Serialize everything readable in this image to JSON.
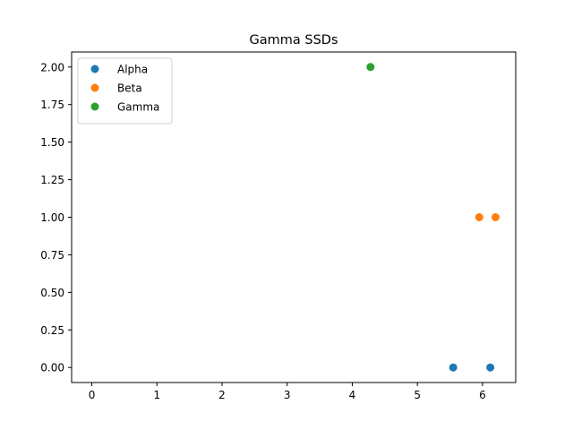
{
  "chart_data": {
    "type": "scatter",
    "title": "Gamma SSDs",
    "xlabel": "",
    "ylabel": "",
    "xlim": [
      -0.31,
      6.51
    ],
    "ylim": [
      -0.1,
      2.1
    ],
    "x_ticks": [
      0,
      1,
      2,
      3,
      4,
      5,
      6
    ],
    "y_ticks": [
      0.0,
      0.25,
      0.5,
      0.75,
      1.0,
      1.25,
      1.5,
      1.75,
      2.0
    ],
    "grid": false,
    "legend_position": "top-left",
    "series": [
      {
        "name": "Alpha",
        "color": "#1f77b4",
        "points": [
          {
            "x": 5.55,
            "y": 0.0
          },
          {
            "x": 6.12,
            "y": 0.0
          }
        ]
      },
      {
        "name": "Beta",
        "color": "#ff7f0e",
        "points": [
          {
            "x": 5.95,
            "y": 1.0
          },
          {
            "x": 6.2,
            "y": 1.0
          }
        ]
      },
      {
        "name": "Gamma",
        "color": "#2ca02c",
        "points": [
          {
            "x": 4.28,
            "y": 2.0
          }
        ]
      }
    ]
  }
}
